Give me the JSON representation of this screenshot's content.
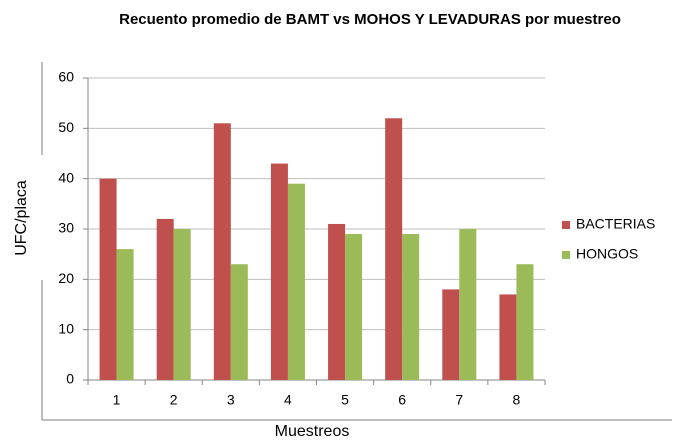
{
  "chart_data": {
    "type": "bar",
    "title": "Recuento promedio de BAMT vs  MOHOS Y LEVADURAS por muestreo",
    "xlabel": "Muestreos",
    "ylabel": "UFC/placa",
    "categories": [
      "1",
      "2",
      "3",
      "4",
      "5",
      "6",
      "7",
      "8"
    ],
    "series": [
      {
        "name": "BACTERIAS",
        "color": "#c0504d",
        "values": [
          40,
          32,
          51,
          43,
          31,
          52,
          18,
          17
        ]
      },
      {
        "name": "HONGOS",
        "color": "#9bbb59",
        "values": [
          26,
          30,
          23,
          39,
          29,
          29,
          30,
          23
        ]
      }
    ],
    "ylim": [
      0,
      60
    ],
    "yticks": [
      0,
      10,
      20,
      30,
      40,
      50,
      60
    ],
    "grid": true,
    "legend": "right"
  }
}
